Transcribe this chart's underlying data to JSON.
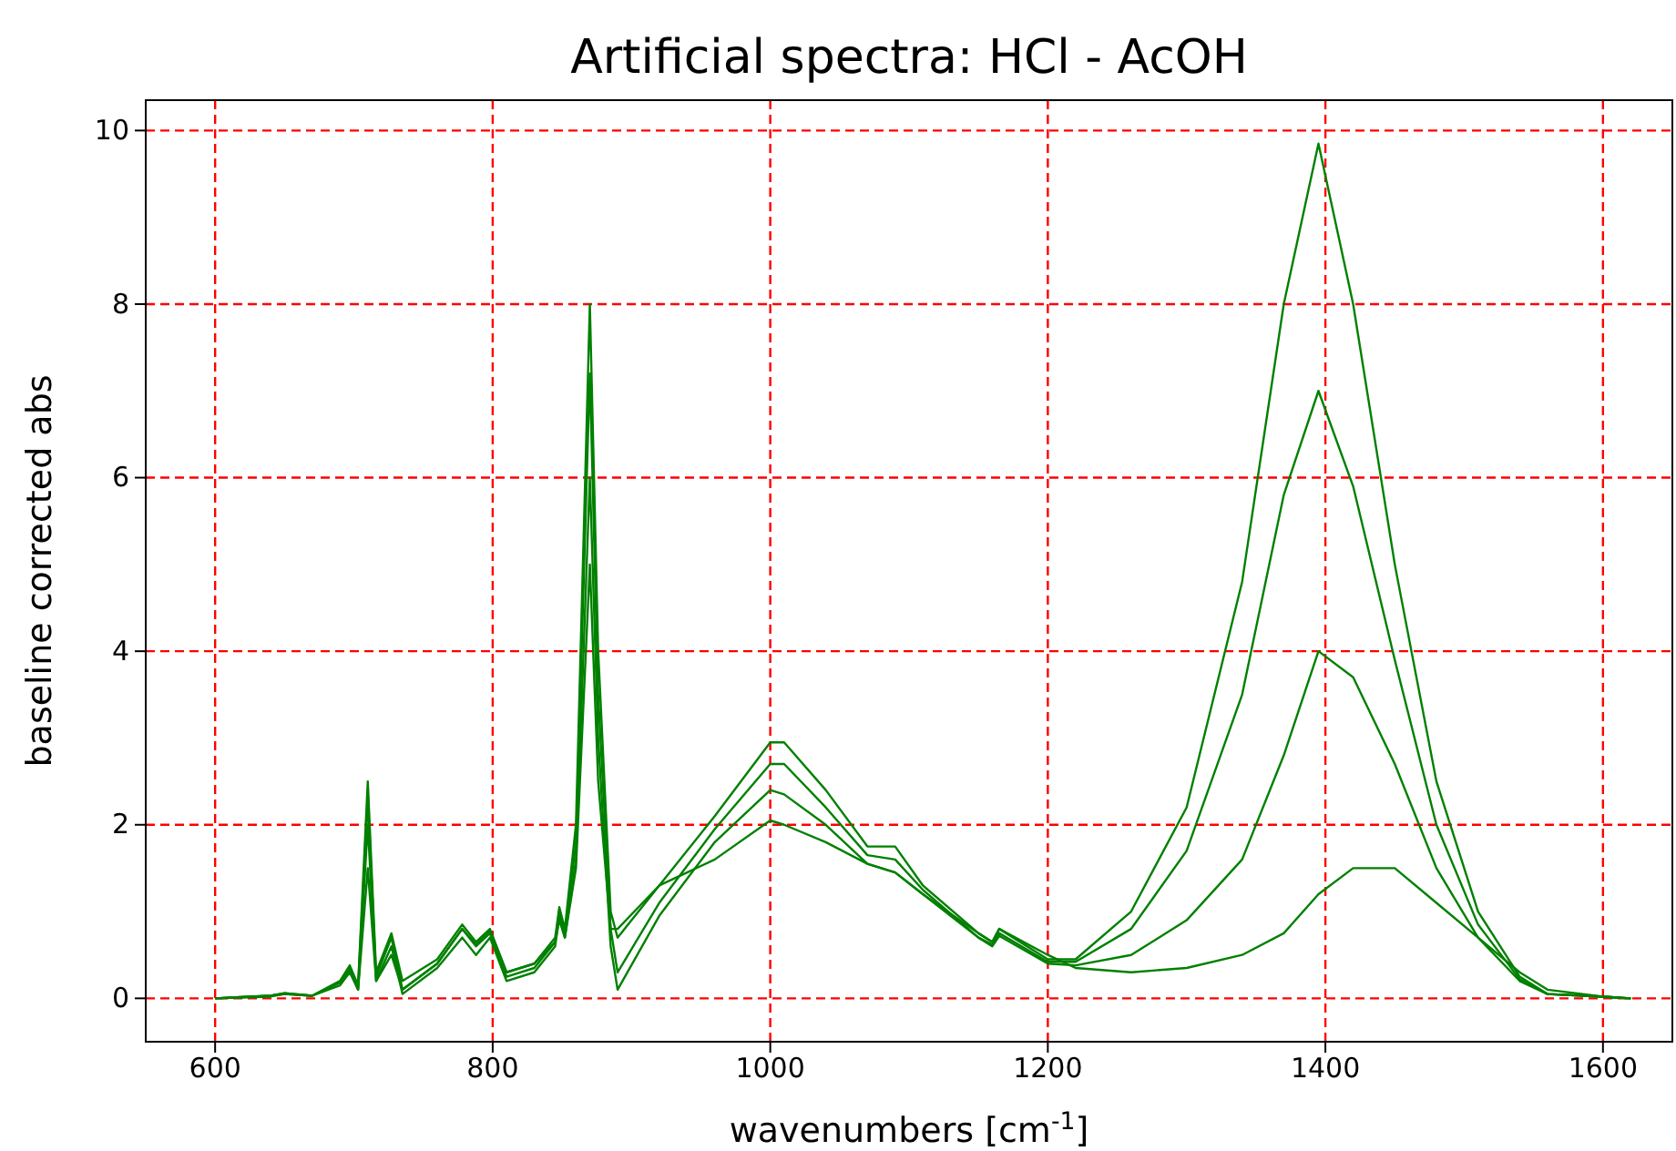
{
  "chart_data": {
    "type": "line",
    "title": "Artificial spectra: HCl - AcOH",
    "xlabel": "wavenumbers [cm$^{-1}$]",
    "ylabel": "baseline corrected abs",
    "x": [
      600,
      640,
      650,
      670,
      690,
      697,
      703,
      710,
      716,
      727,
      735,
      760,
      778,
      788,
      798,
      810,
      830,
      845,
      848,
      852,
      860,
      870,
      876,
      885,
      890,
      920,
      960,
      1000,
      1010,
      1040,
      1070,
      1090,
      1110,
      1150,
      1160,
      1165,
      1200,
      1220,
      1260,
      1300,
      1340,
      1370,
      1395,
      1420,
      1450,
      1480,
      1510,
      1540,
      1560,
      1600,
      1620
    ],
    "series": [
      {
        "color": "#008000",
        "values": [
          0,
          0.03,
          0.06,
          0.03,
          0.2,
          0.38,
          0.15,
          2.5,
          0.3,
          0.75,
          0.2,
          0.45,
          0.85,
          0.65,
          0.8,
          0.3,
          0.4,
          0.7,
          1.05,
          0.8,
          2,
          8,
          4,
          1,
          0.7,
          1.3,
          2.1,
          2.95,
          2.95,
          2.4,
          1.75,
          1.75,
          1.3,
          0.75,
          0.65,
          0.8,
          0.45,
          0.45,
          1,
          2.2,
          4.8,
          8,
          9.85,
          8,
          5,
          2.5,
          1,
          0.25,
          0.05,
          0.02,
          0
        ]
      },
      {
        "color": "#008000",
        "values": [
          0,
          0.03,
          0.06,
          0.03,
          0.2,
          0.36,
          0.12,
          2.3,
          0.25,
          0.7,
          0.1,
          0.4,
          0.8,
          0.6,
          0.75,
          0.25,
          0.35,
          0.65,
          1,
          0.75,
          1.8,
          7.2,
          3.5,
          0.8,
          0.3,
          1.1,
          1.95,
          2.7,
          2.7,
          2.2,
          1.65,
          1.6,
          1.25,
          0.7,
          0.62,
          0.75,
          0.42,
          0.42,
          0.8,
          1.7,
          3.5,
          5.8,
          7,
          5.9,
          3.9,
          2,
          0.85,
          0.22,
          0.05,
          0.02,
          0
        ]
      },
      {
        "color": "#008000",
        "values": [
          0,
          0.03,
          0.05,
          0.03,
          0.18,
          0.33,
          0.1,
          2,
          0.2,
          0.6,
          0.05,
          0.35,
          0.7,
          0.5,
          0.7,
          0.2,
          0.3,
          0.6,
          0.95,
          0.7,
          1.6,
          6,
          3,
          0.6,
          0.1,
          0.95,
          1.8,
          2.4,
          2.35,
          2,
          1.55,
          1.45,
          1.2,
          0.7,
          0.6,
          0.72,
          0.4,
          0.38,
          0.5,
          0.9,
          1.6,
          2.8,
          4,
          3.7,
          2.7,
          1.5,
          0.7,
          0.2,
          0.05,
          0.02,
          0
        ]
      },
      {
        "color": "#008000",
        "values": [
          0,
          0.02,
          0.05,
          0.03,
          0.15,
          0.3,
          0.1,
          1.5,
          0.2,
          0.5,
          0.1,
          0.4,
          0.8,
          0.62,
          0.78,
          0.3,
          0.4,
          0.65,
          0.9,
          0.7,
          1.5,
          5,
          2.5,
          0.8,
          0.8,
          1.3,
          1.6,
          2.05,
          2,
          1.8,
          1.55,
          1.45,
          1.2,
          0.75,
          0.65,
          0.8,
          0.5,
          0.35,
          0.3,
          0.35,
          0.5,
          0.75,
          1.2,
          1.5,
          1.5,
          1.1,
          0.7,
          0.3,
          0.1,
          0.02,
          0
        ]
      }
    ],
    "xlim": [
      550,
      1650
    ],
    "ylim": [
      -0.5,
      10.35
    ],
    "xticks": [
      600,
      800,
      1000,
      1200,
      1400,
      1600
    ],
    "yticks": [
      0,
      2,
      4,
      6,
      8,
      10
    ],
    "grid": true,
    "line_style": "solid",
    "marker": "none"
  }
}
